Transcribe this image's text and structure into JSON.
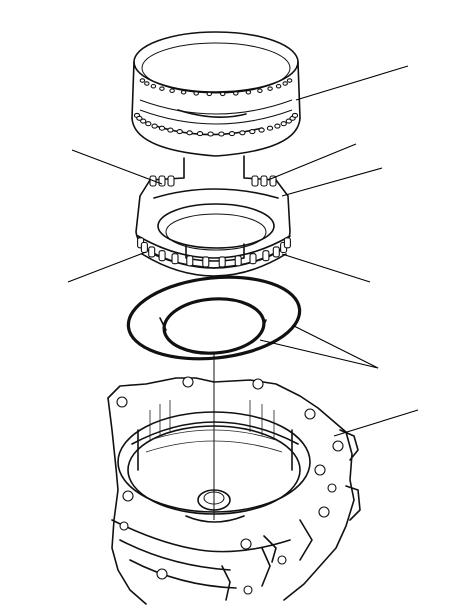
{
  "diagram": {
    "background": "#ffffff",
    "line_color": "#111111",
    "parts": [
      {
        "name": "upper-drum-ring"
      },
      {
        "name": "clutch-drum"
      },
      {
        "name": "plate-ring-pair"
      },
      {
        "name": "transmission-case"
      }
    ],
    "leader_lines": 7
  }
}
